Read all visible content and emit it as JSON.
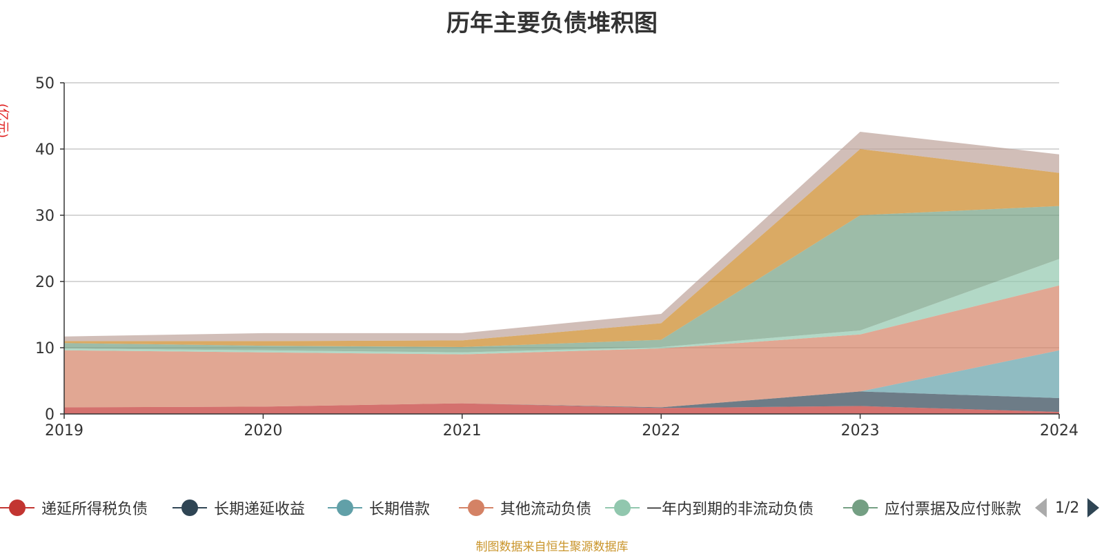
{
  "chart_data": {
    "type": "area",
    "stacked": true,
    "title": "历年主要负债堆积图",
    "unit_label": "(亿元)",
    "x": [
      "2019",
      "2020",
      "2021",
      "2022",
      "2023",
      "2024"
    ],
    "ylim": [
      0,
      50
    ],
    "yticks": [
      0,
      10,
      20,
      30,
      40,
      50
    ],
    "grid": true,
    "legend_position": "bottom",
    "series": [
      {
        "name": "递延所得税负债",
        "color": "#c23531",
        "values": [
          1.0,
          1.1,
          1.6,
          0.9,
          1.2,
          0.3
        ]
      },
      {
        "name": "长期递延收益",
        "color": "#2f4554",
        "values": [
          0.0,
          0.0,
          0.0,
          0.1,
          2.2,
          2.1
        ]
      },
      {
        "name": "长期借款",
        "color": "#61a0a8",
        "values": [
          0.0,
          0.0,
          0.0,
          0.0,
          0.0,
          7.2
        ]
      },
      {
        "name": "其他流动负债",
        "color": "#d48265",
        "values": [
          8.6,
          8.2,
          7.4,
          8.9,
          8.6,
          9.8
        ]
      },
      {
        "name": "一年内到期的非流动负债",
        "color": "#91c7ae",
        "values": [
          0.3,
          0.3,
          0.3,
          0.2,
          0.6,
          4.0
        ]
      },
      {
        "name": "应付票据及应付账款",
        "color": "#749f83",
        "values": [
          0.8,
          0.7,
          0.8,
          1.1,
          17.4,
          8.0
        ]
      },
      {
        "name": "",
        "color": "#ca8622",
        "values": [
          0.3,
          0.7,
          1.0,
          2.5,
          10.0,
          5.0
        ]
      },
      {
        "name": "",
        "color": "#bda29a",
        "values": [
          0.7,
          1.2,
          1.1,
          1.4,
          2.6,
          2.8
        ]
      }
    ]
  },
  "legend_pager": {
    "text": "1/2"
  },
  "footer": {
    "source": "制图数据来自恒生聚源数据库"
  }
}
